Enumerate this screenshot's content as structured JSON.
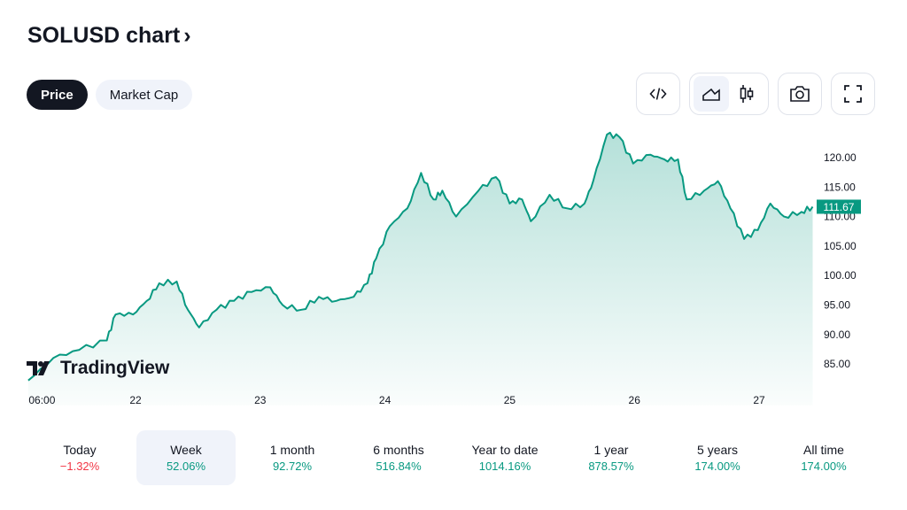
{
  "header": {
    "title": "SOLUSD chart",
    "chevron": "›"
  },
  "tabs": [
    {
      "label": "Price",
      "active": true
    },
    {
      "label": "Market Cap",
      "active": false
    }
  ],
  "toolbar": {
    "icons": [
      "embed-code-icon",
      "area-chart-icon",
      "candlestick-icon",
      "camera-icon",
      "fullscreen-icon"
    ]
  },
  "logo": "TradingView",
  "colors": {
    "line": "#089981",
    "down": "#f23645"
  },
  "chart_data": {
    "type": "area",
    "symbol": "SOLUSD",
    "x_ticks": [
      {
        "label": "06:00",
        "d": -0.75
      },
      {
        "label": "22",
        "d": 0
      },
      {
        "label": "23",
        "d": 1
      },
      {
        "label": "24",
        "d": 2
      },
      {
        "label": "25",
        "d": 3
      },
      {
        "label": "26",
        "d": 4
      },
      {
        "label": "27",
        "d": 5
      }
    ],
    "y_ticks": [
      "120.00",
      "115.00",
      "110.00",
      "105.00",
      "100.00",
      "95.00",
      "90.00",
      "85.00"
    ],
    "ylim": [
      81,
      127
    ],
    "last_price": "111.67",
    "points": [
      [
        -0.86,
        82.2
      ],
      [
        -0.66,
        86
      ],
      [
        -0.45,
        87.4
      ],
      [
        -0.23,
        89
      ],
      [
        -0.16,
        93.4
      ],
      [
        -0.02,
        93.4
      ],
      [
        0.09,
        95.7
      ],
      [
        0.19,
        98.7
      ],
      [
        0.33,
        99
      ],
      [
        0.42,
        94.2
      ],
      [
        0.51,
        91.2
      ],
      [
        0.65,
        94.2
      ],
      [
        0.79,
        95.7
      ],
      [
        0.93,
        97.2
      ],
      [
        1.08,
        98
      ],
      [
        1.18,
        95
      ],
      [
        1.33,
        94.2
      ],
      [
        1.47,
        96.4
      ],
      [
        1.61,
        95.7
      ],
      [
        1.75,
        96.4
      ],
      [
        1.86,
        98.7
      ],
      [
        1.93,
        102.9
      ],
      [
        2.04,
        108.4
      ],
      [
        2.18,
        111.4
      ],
      [
        2.29,
        117.4
      ],
      [
        2.39,
        112.9
      ],
      [
        2.46,
        114.4
      ],
      [
        2.57,
        110
      ],
      [
        2.75,
        114.4
      ],
      [
        2.89,
        116.7
      ],
      [
        3.0,
        112.2
      ],
      [
        3.1,
        112.9
      ],
      [
        3.17,
        109.2
      ],
      [
        3.32,
        113.7
      ],
      [
        3.46,
        111.4
      ],
      [
        3.6,
        112.2
      ],
      [
        3.67,
        116
      ],
      [
        3.78,
        123.9
      ],
      [
        3.88,
        123.5
      ],
      [
        3.99,
        119
      ],
      [
        4.13,
        120.5
      ],
      [
        4.24,
        119.7
      ],
      [
        4.35,
        119.7
      ],
      [
        4.42,
        112.9
      ],
      [
        4.56,
        114.4
      ],
      [
        4.67,
        116
      ],
      [
        4.77,
        111.4
      ],
      [
        4.88,
        106.2
      ],
      [
        4.99,
        107.7
      ],
      [
        5.09,
        112.2
      ],
      [
        5.2,
        110
      ],
      [
        5.34,
        110.8
      ],
      [
        5.43,
        111.67
      ]
    ]
  },
  "periods": [
    {
      "label": "Today",
      "value": "−1.32%",
      "dir": "down"
    },
    {
      "label": "Week",
      "value": "52.06%",
      "dir": "up",
      "selected": true
    },
    {
      "label": "1 month",
      "value": "92.72%",
      "dir": "up"
    },
    {
      "label": "6 months",
      "value": "516.84%",
      "dir": "up"
    },
    {
      "label": "Year to date",
      "value": "1014.16%",
      "dir": "up"
    },
    {
      "label": "1 year",
      "value": "878.57%",
      "dir": "up"
    },
    {
      "label": "5 years",
      "value": "174.00%",
      "dir": "up"
    },
    {
      "label": "All time",
      "value": "174.00%",
      "dir": "up"
    }
  ]
}
